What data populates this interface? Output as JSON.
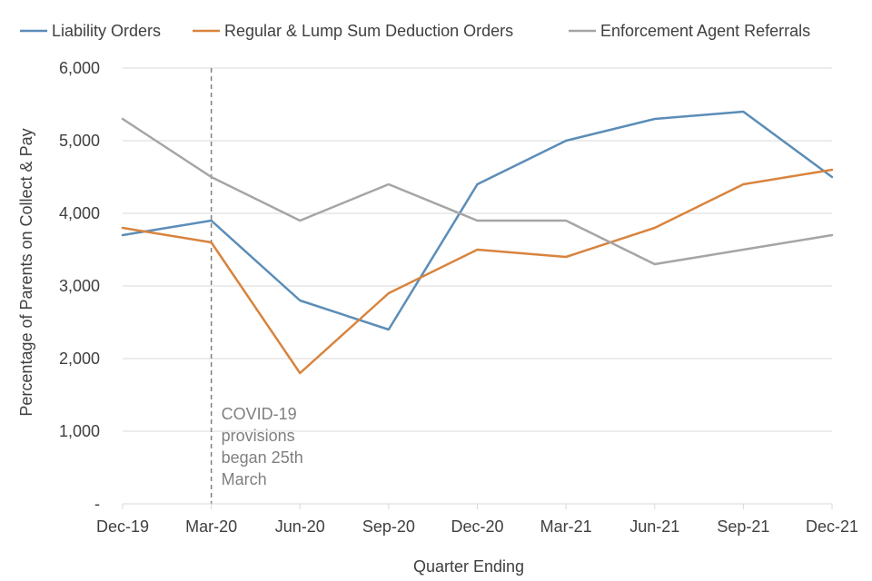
{
  "chart_data": {
    "type": "line",
    "title": "",
    "xlabel": "Quarter Ending",
    "ylabel": "Percentage of Parents on Collect & Pay",
    "categories": [
      "Dec-19",
      "Mar-20",
      "Jun-20",
      "Sep-20",
      "Dec-20",
      "Mar-21",
      "Jun-21",
      "Sep-21",
      "Dec-21"
    ],
    "ylim": [
      0,
      6000
    ],
    "yticks": [
      {
        "value": 0,
        "label": "-"
      },
      {
        "value": 1000,
        "label": "1,000"
      },
      {
        "value": 2000,
        "label": "2,000"
      },
      {
        "value": 3000,
        "label": "3,000"
      },
      {
        "value": 4000,
        "label": "4,000"
      },
      {
        "value": 5000,
        "label": "5,000"
      },
      {
        "value": 6000,
        "label": "6,000"
      }
    ],
    "grid": true,
    "legend": "top",
    "series": [
      {
        "name": "Liability Orders",
        "color": "#5b8db8",
        "values": [
          3700,
          3900,
          2800,
          2400,
          4400,
          5000,
          5300,
          5400,
          4500
        ]
      },
      {
        "name": "Regular & Lump Sum Deduction Orders",
        "color": "#d8843e",
        "values": [
          3800,
          3600,
          1800,
          2900,
          3500,
          3400,
          3800,
          4400,
          4600
        ]
      },
      {
        "name": "Enforcement Agent Referrals",
        "color": "#a5a5a5",
        "values": [
          5300,
          4500,
          3900,
          4400,
          3900,
          3900,
          3300,
          3500,
          3700
        ]
      }
    ],
    "annotations": [
      {
        "category": "Mar-20",
        "style": "dashed-vertical",
        "color": "#7f7f7f",
        "lines": [
          "COVID-19",
          "provisions",
          "began 25th",
          "March"
        ]
      }
    ]
  }
}
